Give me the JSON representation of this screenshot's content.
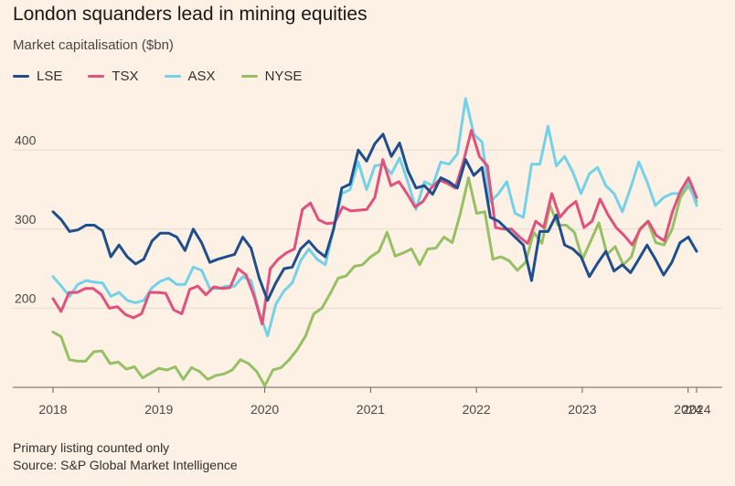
{
  "chart_data": {
    "type": "line",
    "title": "London squanders lead in mining equities",
    "ylabel": "Market capitalisation ($bn)",
    "xlabel": "",
    "xlim": [
      2018,
      2024.08
    ],
    "ylim": [
      100,
      480
    ],
    "yticks": [
      200,
      300,
      400
    ],
    "xticks": [
      2018,
      2019,
      2020,
      2021,
      2022,
      2023,
      2024,
      2024.08
    ],
    "xtick_labels": [
      "2018",
      "2019",
      "2020",
      "2021",
      "2022",
      "2023",
      "2024",
      "2024"
    ],
    "grid": "horizontal",
    "legend_position": "top-left",
    "series": [
      {
        "name": "LSE",
        "color": "#1f4e8c",
        "values": [
          322,
          312,
          297,
          299,
          305,
          305,
          298,
          265,
          280,
          265,
          256,
          262,
          285,
          295,
          295,
          290,
          273,
          300,
          283,
          258,
          262,
          265,
          268,
          290,
          276,
          238,
          210,
          232,
          250,
          252,
          275,
          285,
          273,
          265,
          300,
          352,
          357,
          400,
          386,
          408,
          420,
          392,
          409,
          374,
          352,
          355,
          344,
          365,
          360,
          352,
          388,
          368,
          378,
          315,
          310,
          300,
          290,
          280,
          235,
          297,
          297,
          318,
          280,
          275,
          265,
          240,
          257,
          272,
          247,
          255,
          245,
          262,
          280,
          262,
          242,
          258,
          283,
          290,
          272
        ]
      },
      {
        "name": "TSX",
        "color": "#e0517c",
        "values": [
          212,
          196,
          220,
          220,
          225,
          225,
          217,
          200,
          202,
          192,
          188,
          193,
          220,
          220,
          219,
          198,
          193,
          224,
          228,
          217,
          227,
          225,
          226,
          250,
          242,
          215,
          180,
          250,
          262,
          270,
          275,
          325,
          333,
          312,
          307,
          308,
          328,
          323,
          324,
          325,
          340,
          388,
          355,
          360,
          345,
          328,
          335,
          352,
          362,
          358,
          352,
          385,
          425,
          392,
          380,
          302,
          300,
          300,
          290,
          282,
          310,
          302,
          345,
          315,
          327,
          335,
          302,
          310,
          338,
          318,
          302,
          292,
          280,
          300,
          310,
          292,
          285,
          322,
          348,
          365,
          340
        ]
      },
      {
        "name": "ASX",
        "color": "#73d1ea",
        "values": [
          240,
          228,
          215,
          230,
          235,
          233,
          232,
          215,
          220,
          210,
          207,
          210,
          226,
          234,
          238,
          230,
          230,
          252,
          248,
          225,
          225,
          228,
          228,
          240,
          235,
          195,
          165,
          205,
          222,
          232,
          260,
          275,
          262,
          255,
          300,
          345,
          350,
          385,
          350,
          380,
          382,
          370,
          390,
          360,
          325,
          360,
          355,
          385,
          382,
          395,
          465,
          420,
          410,
          335,
          345,
          360,
          320,
          315,
          382,
          382,
          430,
          380,
          392,
          372,
          345,
          370,
          378,
          355,
          345,
          322,
          352,
          385,
          360,
          330,
          340,
          345,
          345,
          360,
          330
        ]
      },
      {
        "name": "NYSE",
        "color": "#96c063",
        "values": [
          170,
          164,
          135,
          133,
          133,
          145,
          146,
          130,
          132,
          123,
          126,
          112,
          118,
          124,
          122,
          126,
          110,
          125,
          120,
          110,
          115,
          117,
          122,
          135,
          130,
          120,
          102,
          122,
          125,
          135,
          148,
          165,
          193,
          200,
          218,
          238,
          241,
          253,
          255,
          265,
          272,
          296,
          266,
          270,
          275,
          255,
          275,
          276,
          290,
          283,
          320,
          365,
          320,
          322,
          262,
          265,
          260,
          248,
          258,
          296,
          282,
          330,
          305,
          305,
          296,
          262,
          285,
          308,
          268,
          278,
          255,
          265,
          300,
          310,
          283,
          280,
          300,
          340,
          355,
          335
        ]
      }
    ]
  },
  "footnote": "Primary listing counted only",
  "source": "Source: S&P Global Market Intelligence"
}
